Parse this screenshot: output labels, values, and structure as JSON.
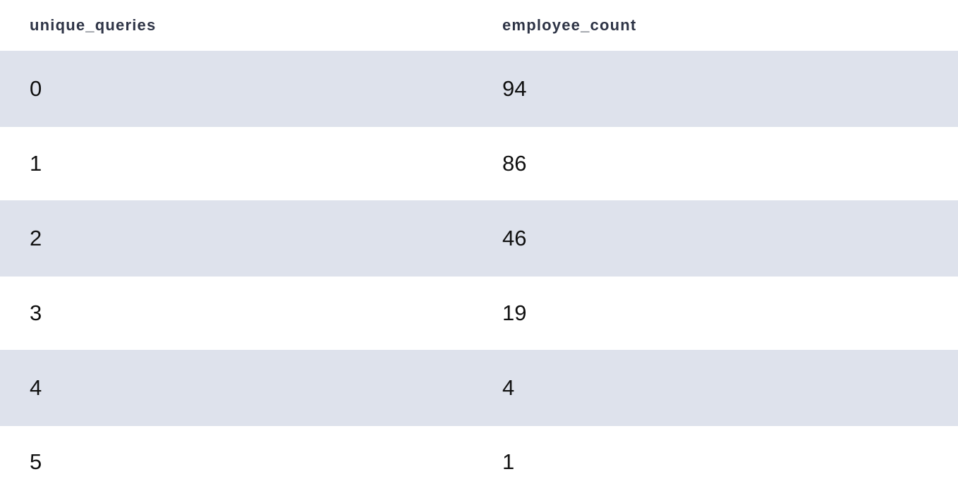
{
  "table": {
    "columns": [
      "unique_queries",
      "employee_count"
    ],
    "rows": [
      [
        "0",
        "94"
      ],
      [
        "1",
        "86"
      ],
      [
        "2",
        "46"
      ],
      [
        "3",
        "19"
      ],
      [
        "4",
        "4"
      ],
      [
        "5",
        "1"
      ]
    ]
  },
  "colors": {
    "header_text": "#2e3446",
    "stripe_row": "#dee2ec",
    "plain_row": "#ffffff",
    "cell_text": "#111111"
  }
}
